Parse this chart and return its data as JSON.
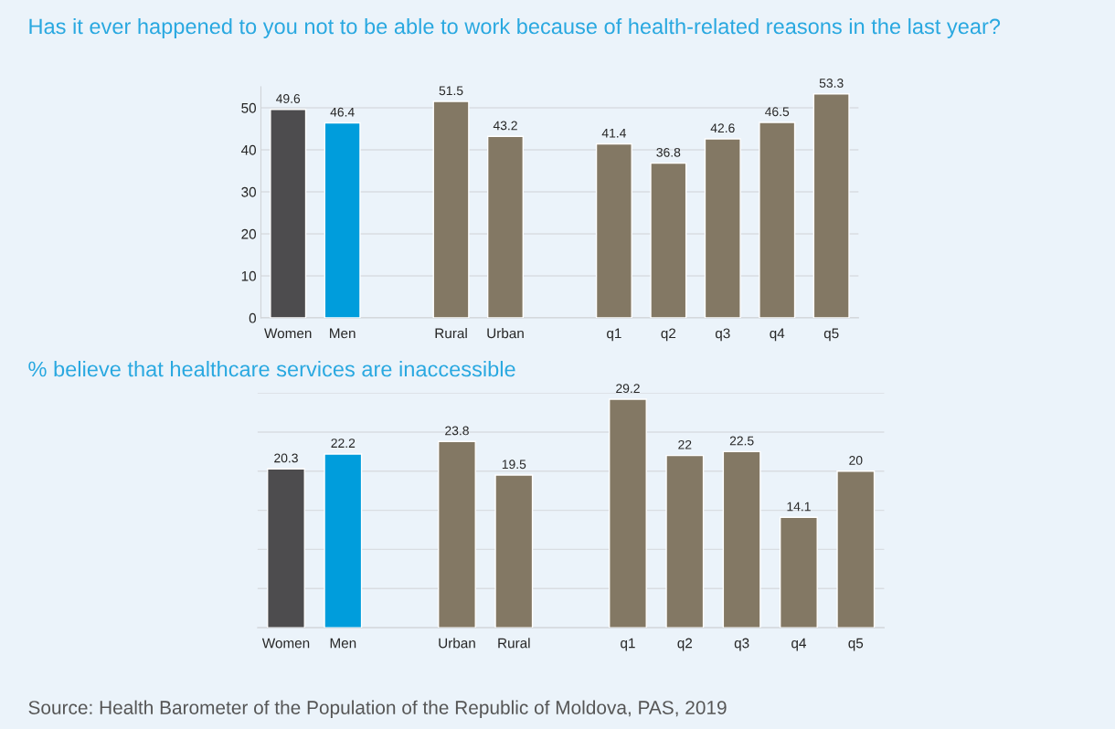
{
  "chart_data": [
    {
      "type": "bar",
      "title": "Has it ever happened to you not to be able to work because of health-related reasons in the last year?",
      "categories": [
        "Women",
        "Men",
        null,
        "Rural",
        "Urban",
        null,
        "q1",
        "q2",
        "q3",
        "q4",
        "q5"
      ],
      "values": [
        49.6,
        46.4,
        null,
        51.5,
        43.2,
        null,
        41.4,
        36.8,
        42.6,
        46.5,
        53.3
      ],
      "colors": [
        "#4d4c4e",
        "#009ddc",
        null,
        "#837864",
        "#837864",
        null,
        "#837864",
        "#837864",
        "#837864",
        "#837864",
        "#837864"
      ],
      "ylim": [
        0,
        55
      ],
      "yticks": [
        0,
        10,
        20,
        30,
        40,
        50
      ],
      "grid": "y",
      "data_labels": true
    },
    {
      "type": "bar",
      "title": "% believe that healthcare services are inaccessible",
      "categories": [
        "Women",
        "Men",
        null,
        "Urban",
        "Rural",
        null,
        "q1",
        "q2",
        "q3",
        "q4",
        "q5"
      ],
      "values": [
        20.3,
        22.2,
        null,
        23.8,
        19.5,
        null,
        29.2,
        22,
        22.5,
        14.1,
        20
      ],
      "colors": [
        "#4d4c4e",
        "#009ddc",
        null,
        "#837864",
        "#837864",
        null,
        "#837864",
        "#837864",
        "#837864",
        "#837864",
        "#837864"
      ],
      "ylim": [
        0,
        30
      ],
      "yticks": [
        {
          "value": 0,
          "label": null
        },
        {
          "value": 5,
          "label": null
        },
        {
          "value": 10,
          "label": null
        },
        {
          "value": 15,
          "label": null
        },
        {
          "value": 20,
          "label": null
        },
        {
          "value": 25,
          "label": null
        },
        {
          "value": 30,
          "label": null
        }
      ],
      "grid": "y",
      "data_labels": true,
      "tick_labels": "x",
      "annotations": [
        "Source: Health Barometer of the Population of the Republic of Moldova, PAS, 2019"
      ]
    }
  ]
}
